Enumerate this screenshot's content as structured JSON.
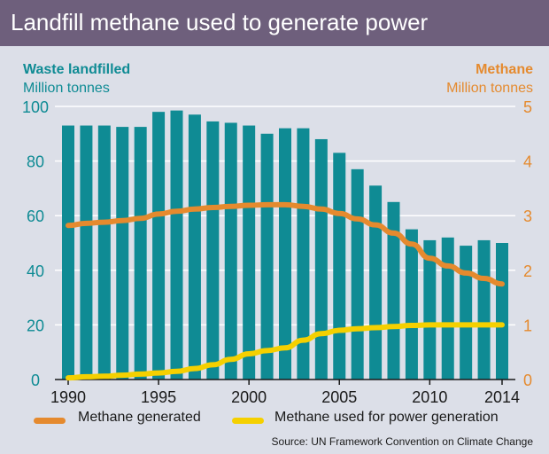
{
  "header": {
    "title": "Landfill methane used to generate power"
  },
  "source": "Source: UN Framework Convention on Climate Change",
  "chart_data": {
    "type": "bar",
    "title": "Landfill methane used to generate power",
    "left_axis": {
      "title": "Waste landfilled",
      "unit": "Million tonnes",
      "range": [
        0,
        100
      ],
      "ticks": [
        "0",
        "20",
        "40",
        "60",
        "80",
        "100"
      ]
    },
    "right_axis": {
      "title": "Methane",
      "unit": "Million tonnes",
      "range": [
        0,
        5
      ],
      "ticks": [
        "0",
        "1",
        "2",
        "3",
        "4",
        "5"
      ]
    },
    "x_ticks": [
      "1990",
      "1995",
      "2000",
      "2005",
      "2010",
      "2014"
    ],
    "x": [
      1990,
      1991,
      1992,
      1993,
      1994,
      1995,
      1996,
      1997,
      1998,
      1999,
      2000,
      2001,
      2002,
      2003,
      2004,
      2005,
      2006,
      2007,
      2008,
      2009,
      2010,
      2011,
      2012,
      2013,
      2014
    ],
    "series": [
      {
        "name": "Waste landfilled",
        "axis": "left",
        "kind": "bar",
        "values": [
          93,
          93,
          93,
          92.5,
          92.5,
          98,
          98.5,
          97,
          94.5,
          94,
          93,
          90,
          92,
          92,
          88,
          83,
          77,
          71,
          65,
          55,
          51,
          52,
          49,
          51,
          50
        ]
      },
      {
        "name": "Methane generated",
        "axis": "right",
        "kind": "line",
        "values": [
          2.82,
          2.86,
          2.88,
          2.91,
          2.95,
          3.03,
          3.08,
          3.12,
          3.15,
          3.17,
          3.19,
          3.2,
          3.2,
          3.17,
          3.12,
          3.04,
          2.94,
          2.83,
          2.68,
          2.48,
          2.22,
          2.08,
          1.95,
          1.85,
          1.75
        ]
      },
      {
        "name": "Methane used for power generation",
        "axis": "right",
        "kind": "line",
        "values": [
          0.03,
          0.05,
          0.06,
          0.08,
          0.1,
          0.12,
          0.15,
          0.2,
          0.27,
          0.37,
          0.47,
          0.53,
          0.58,
          0.72,
          0.84,
          0.9,
          0.93,
          0.95,
          0.97,
          0.99,
          1.0,
          1.0,
          1.0,
          1.0,
          1.0
        ]
      }
    ],
    "colors": {
      "bars": "#0f8b94",
      "methane_generated": "#e58a2e",
      "methane_power": "#f5d000",
      "left_axis_text": "#0f8b94",
      "right_axis_text": "#e58a2e"
    },
    "grid": true
  }
}
